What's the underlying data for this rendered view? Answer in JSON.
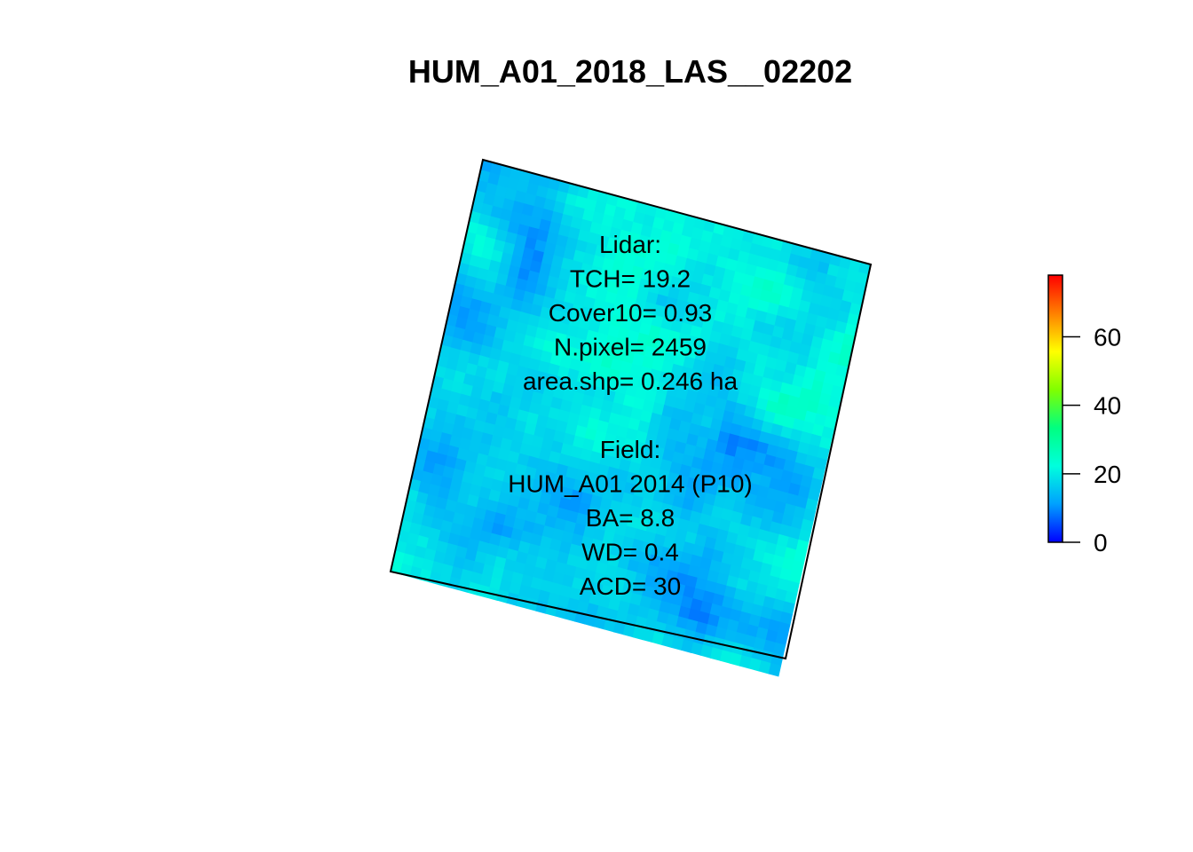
{
  "chart_data": {
    "type": "heatmap",
    "title": "HUM_A01_2018_LAS__02202",
    "xlabel": "",
    "ylabel": "",
    "description_kind": "lidar canopy height raster clipped to a rotated square plot",
    "grid_size": [
      40,
      40
    ],
    "value_range": [
      0,
      78
    ],
    "dominant_value_range": [
      5,
      30
    ],
    "colorbar": {
      "ticks": [
        0,
        20,
        40,
        60
      ],
      "tick_labels": [
        "0",
        "20",
        "40",
        "60"
      ],
      "range": [
        0,
        78
      ],
      "colors": [
        "#0000ff",
        "#00a0ff",
        "#00ffdd",
        "#00ff80",
        "#80ff00",
        "#ffff00",
        "#ff8000",
        "#ff0000"
      ]
    },
    "annotations": {
      "lidar": [
        "Lidar:",
        "TCH= 19.2",
        "Cover10= 0.93",
        "N.pixel= 2459",
        "area.shp= 0.246 ha"
      ],
      "field": [
        "Field:",
        "HUM_A01 2014 (P10)",
        "BA= 8.8",
        "WD= 0.4",
        "ACD= 30"
      ]
    }
  }
}
